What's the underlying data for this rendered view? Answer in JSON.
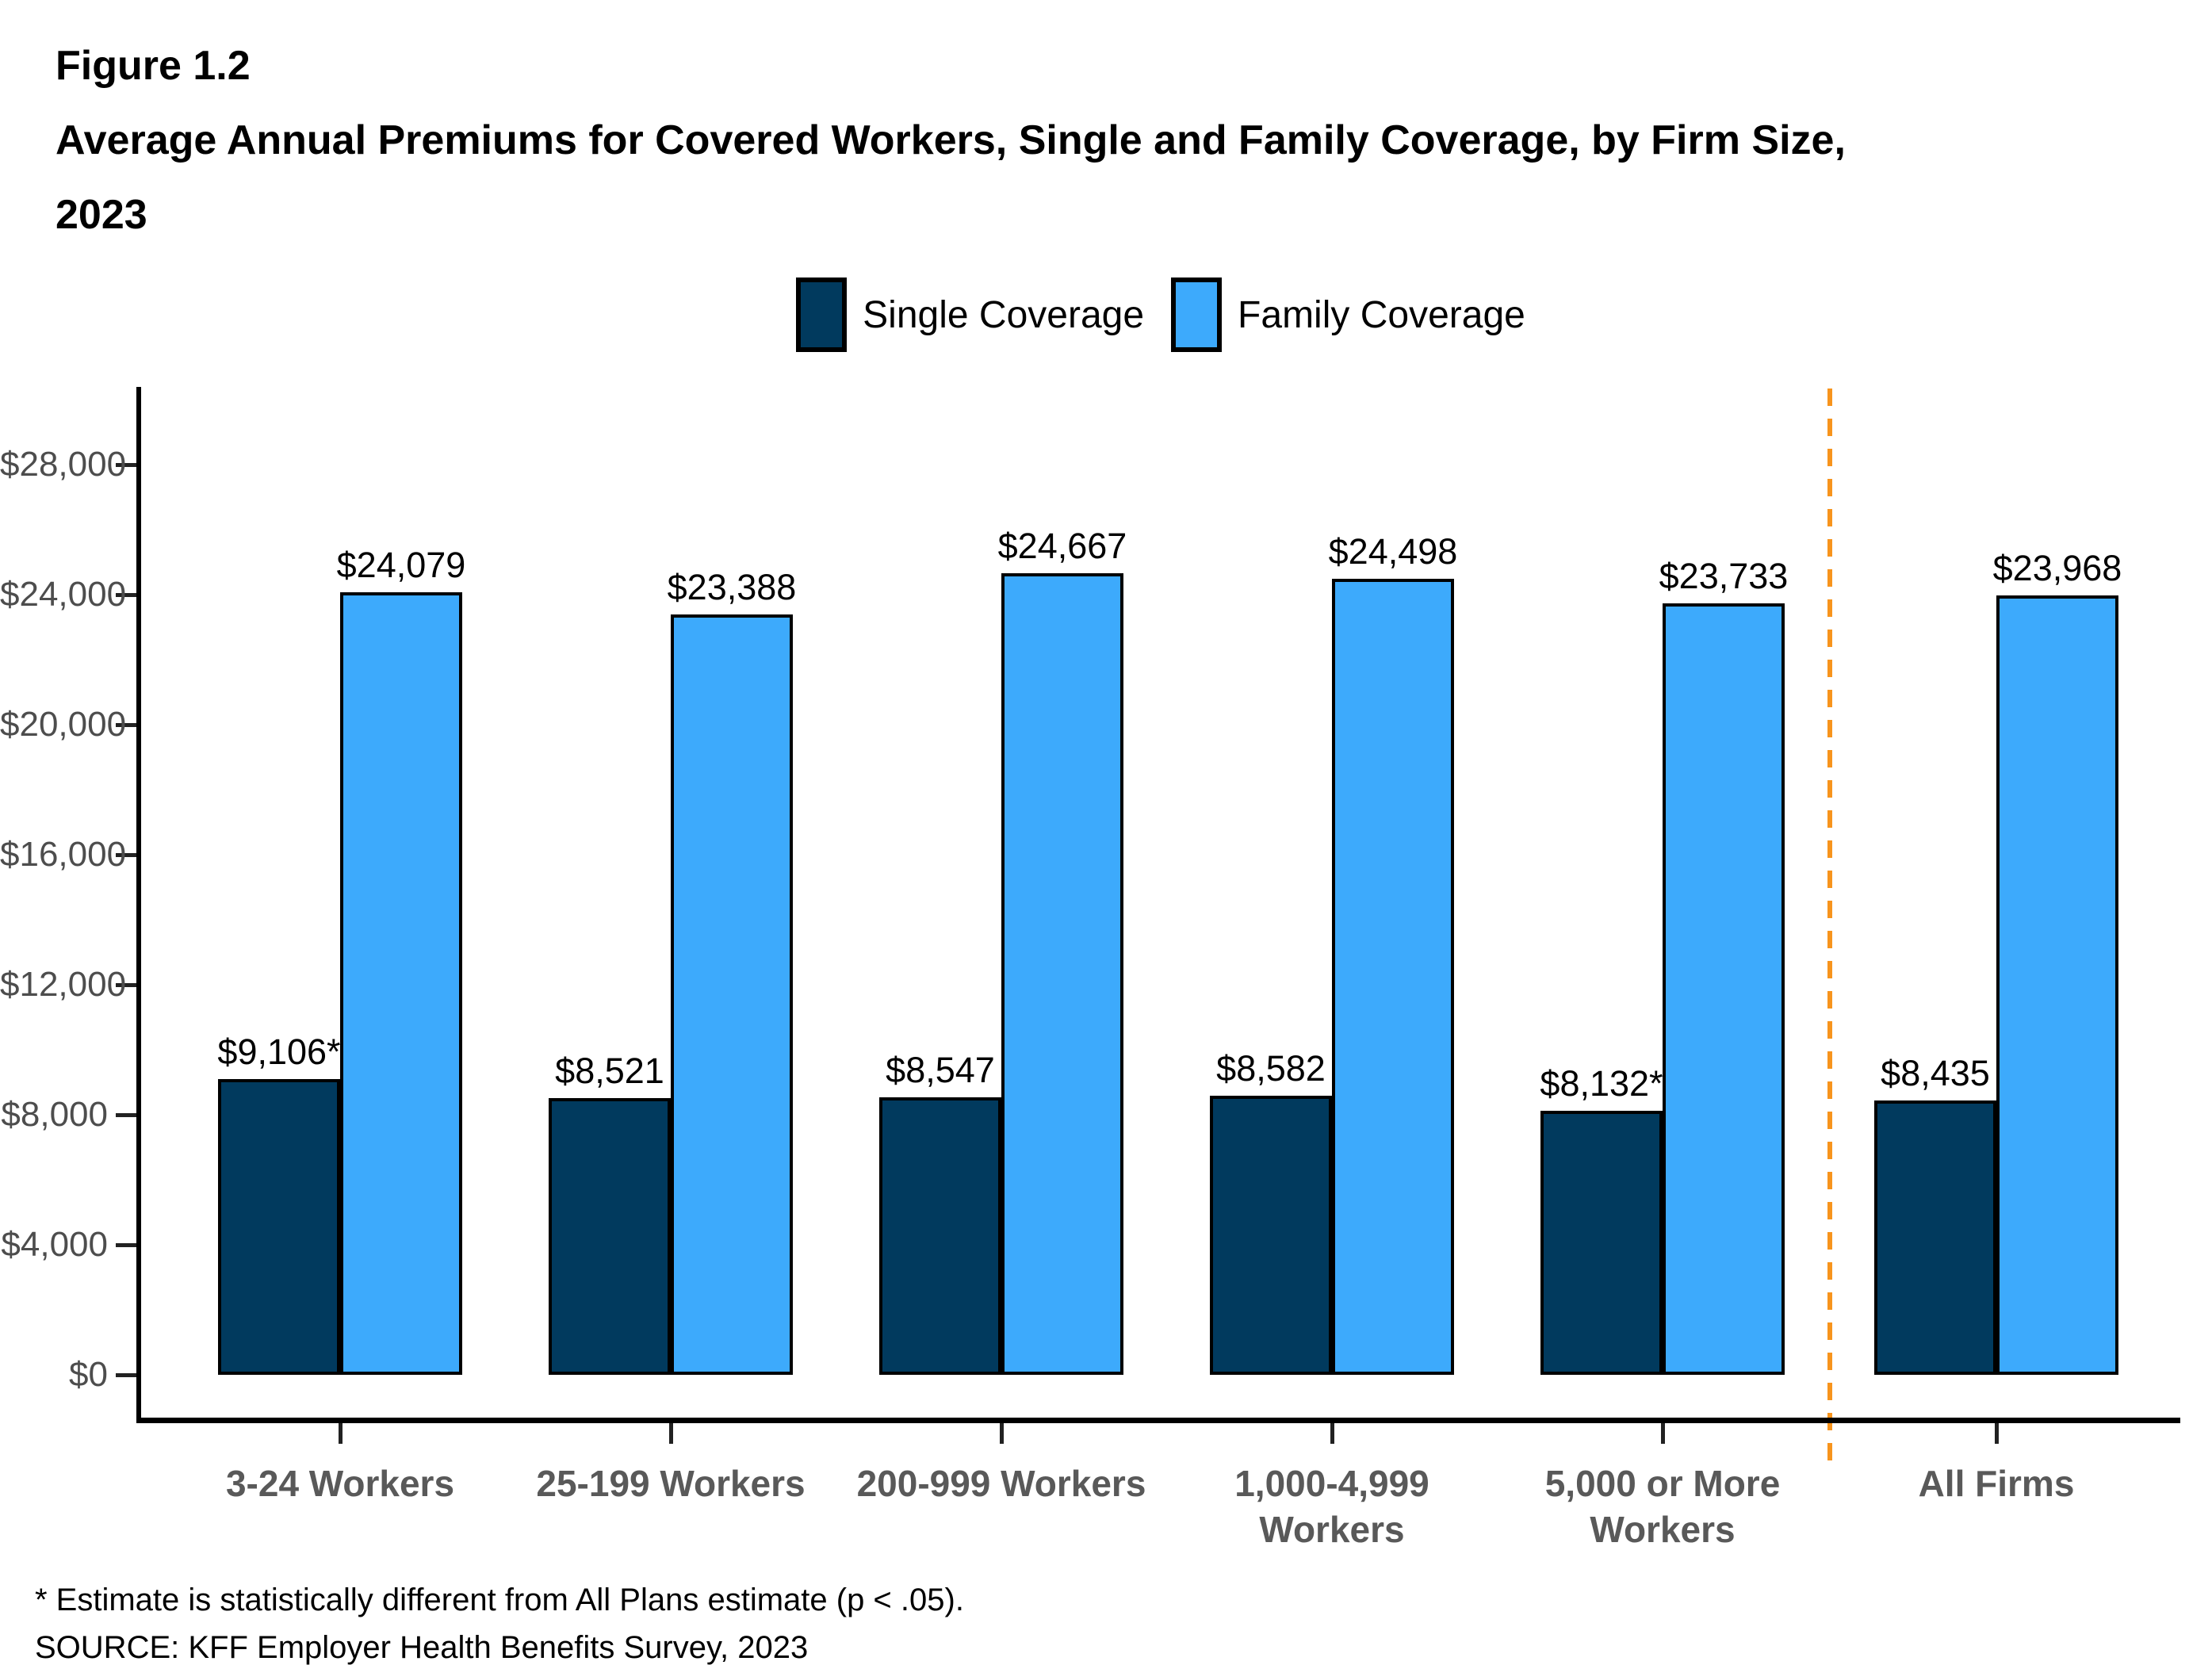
{
  "title": {
    "figure_label": "Figure 1.2",
    "line1": "Average Annual Premiums for Covered Workers, Single and Family Coverage, by Firm Size,",
    "line2": "2023"
  },
  "legend": {
    "items": [
      {
        "label": "Single Coverage",
        "color": "#013A5E"
      },
      {
        "label": "Family Coverage",
        "color": "#3DAAFC"
      }
    ]
  },
  "chart_data": {
    "type": "bar",
    "title": "Average Annual Premiums for Covered Workers, Single and Family Coverage, by Firm Size, 2023",
    "categories": [
      "3-24 Workers",
      "25-199 Workers",
      "200-999 Workers",
      "1,000-4,999\nWorkers",
      "5,000 or More\nWorkers",
      "All Firms"
    ],
    "series": [
      {
        "name": "Single Coverage",
        "color": "#013A5E",
        "values": [
          9106,
          8521,
          8547,
          8582,
          8132,
          8435
        ],
        "labels": [
          "$9,106*",
          "$8,521",
          "$8,547",
          "$8,582",
          "$8,132*",
          "$8,435"
        ]
      },
      {
        "name": "Family Coverage",
        "color": "#3DAAFC",
        "values": [
          24079,
          23388,
          24667,
          24498,
          23733,
          23968
        ],
        "labels": [
          "$24,079",
          "$23,388",
          "$24,667",
          "$24,498",
          "$23,733",
          "$23,968"
        ]
      }
    ],
    "y_axis": {
      "min": 0,
      "max": 30000,
      "tick_step": 4000,
      "tick_values": [
        0,
        4000,
        8000,
        12000,
        16000,
        20000,
        24000,
        28000
      ],
      "tick_labels": [
        "$0",
        "$4,000",
        "$8,000",
        "$12,000",
        "$16,000",
        "$20,000",
        "$24,000",
        "$28,000"
      ]
    },
    "ylim": [
      0,
      30000
    ],
    "xlabel": "",
    "ylabel": "",
    "grid": false,
    "legend_position": "top",
    "separator": {
      "between": [
        "5,000 or More\nWorkers",
        "All Firms"
      ],
      "color": "#F7941D",
      "style": "dashed"
    }
  },
  "footnotes": {
    "note": "* Estimate is statistically different from All Plans estimate (p < .05).",
    "source": "SOURCE: KFF Employer Health Benefits Survey, 2023"
  }
}
